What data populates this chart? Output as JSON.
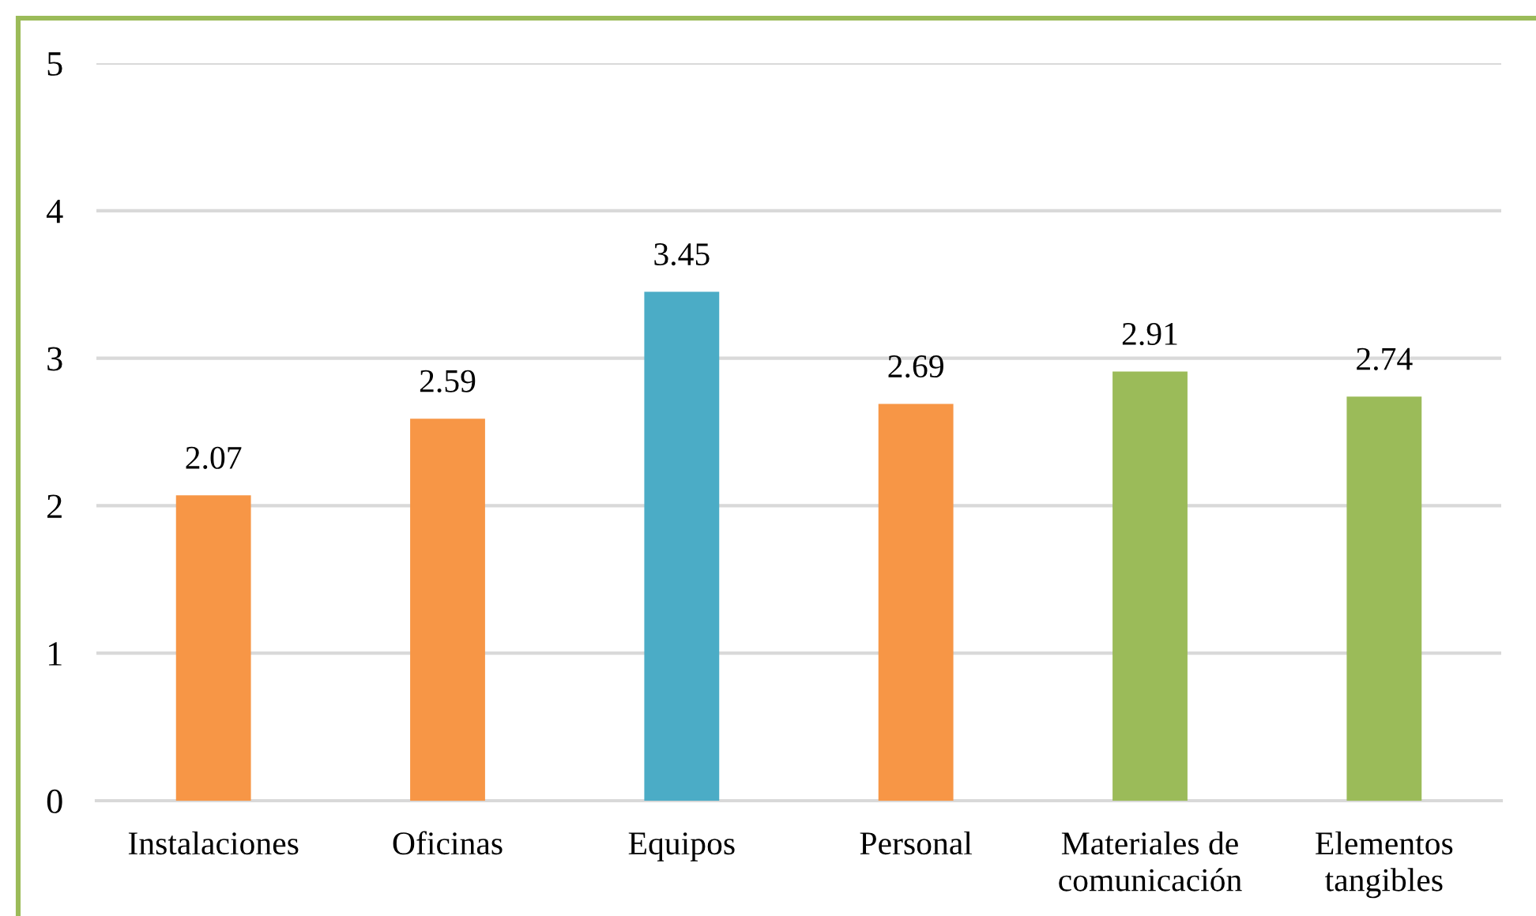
{
  "chart_data": {
    "type": "bar",
    "categories": [
      "Instalaciones",
      "Oficinas",
      "Equipos",
      "Personal",
      "Materiales de comunicación",
      "Elementos tangibles"
    ],
    "values": [
      2.07,
      2.59,
      3.45,
      2.69,
      2.91,
      2.74
    ],
    "colors": [
      "#f79646",
      "#f79646",
      "#4bacc6",
      "#f79646",
      "#9bbb59",
      "#9bbb59"
    ],
    "ylim": [
      0,
      5
    ],
    "yticks": [
      0,
      1,
      2,
      3,
      4,
      5
    ],
    "grid": "y",
    "data_labels": true
  }
}
